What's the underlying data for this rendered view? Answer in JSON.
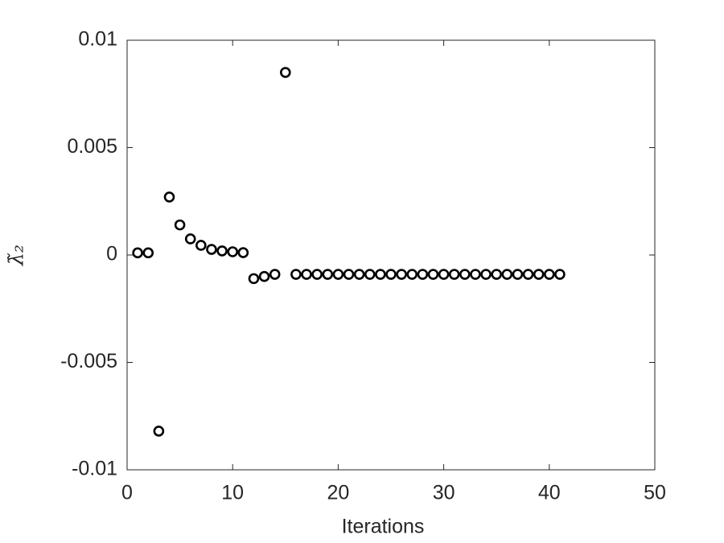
{
  "chart_data": {
    "type": "scatter",
    "x_label": "Iterations",
    "y_label": "λ̃₂",
    "x": [
      1,
      2,
      3,
      4,
      5,
      6,
      7,
      8,
      9,
      10,
      11,
      12,
      13,
      14,
      15,
      16,
      17,
      18,
      19,
      20,
      21,
      22,
      23,
      24,
      25,
      26,
      27,
      28,
      29,
      30,
      31,
      32,
      33,
      34,
      35,
      36,
      37,
      38,
      39,
      40,
      41
    ],
    "values": [
      0.0001,
      0.0001,
      -0.0082,
      0.0027,
      0.0014,
      0.00075,
      0.00045,
      0.00026,
      0.00019,
      0.00015,
      0.00011,
      -0.0011,
      -0.001,
      -0.0009,
      0.0085,
      -0.0009,
      -0.0009,
      -0.0009,
      -0.0009,
      -0.0009,
      -0.0009,
      -0.0009,
      -0.0009,
      -0.0009,
      -0.0009,
      -0.0009,
      -0.0009,
      -0.0009,
      -0.0009,
      -0.0009,
      -0.0009,
      -0.0009,
      -0.0009,
      -0.0009,
      -0.0009,
      -0.0009,
      -0.0009,
      -0.0009,
      -0.0009,
      -0.0009,
      -0.0009
    ],
    "color": "#000000",
    "xlim": [
      0,
      50
    ],
    "xticks": [
      0,
      10,
      20,
      30,
      40,
      50
    ],
    "ylim": [
      -0.01,
      0.01
    ],
    "yticks": [
      -0.01,
      -0.005,
      0,
      0.005,
      0.01
    ]
  }
}
